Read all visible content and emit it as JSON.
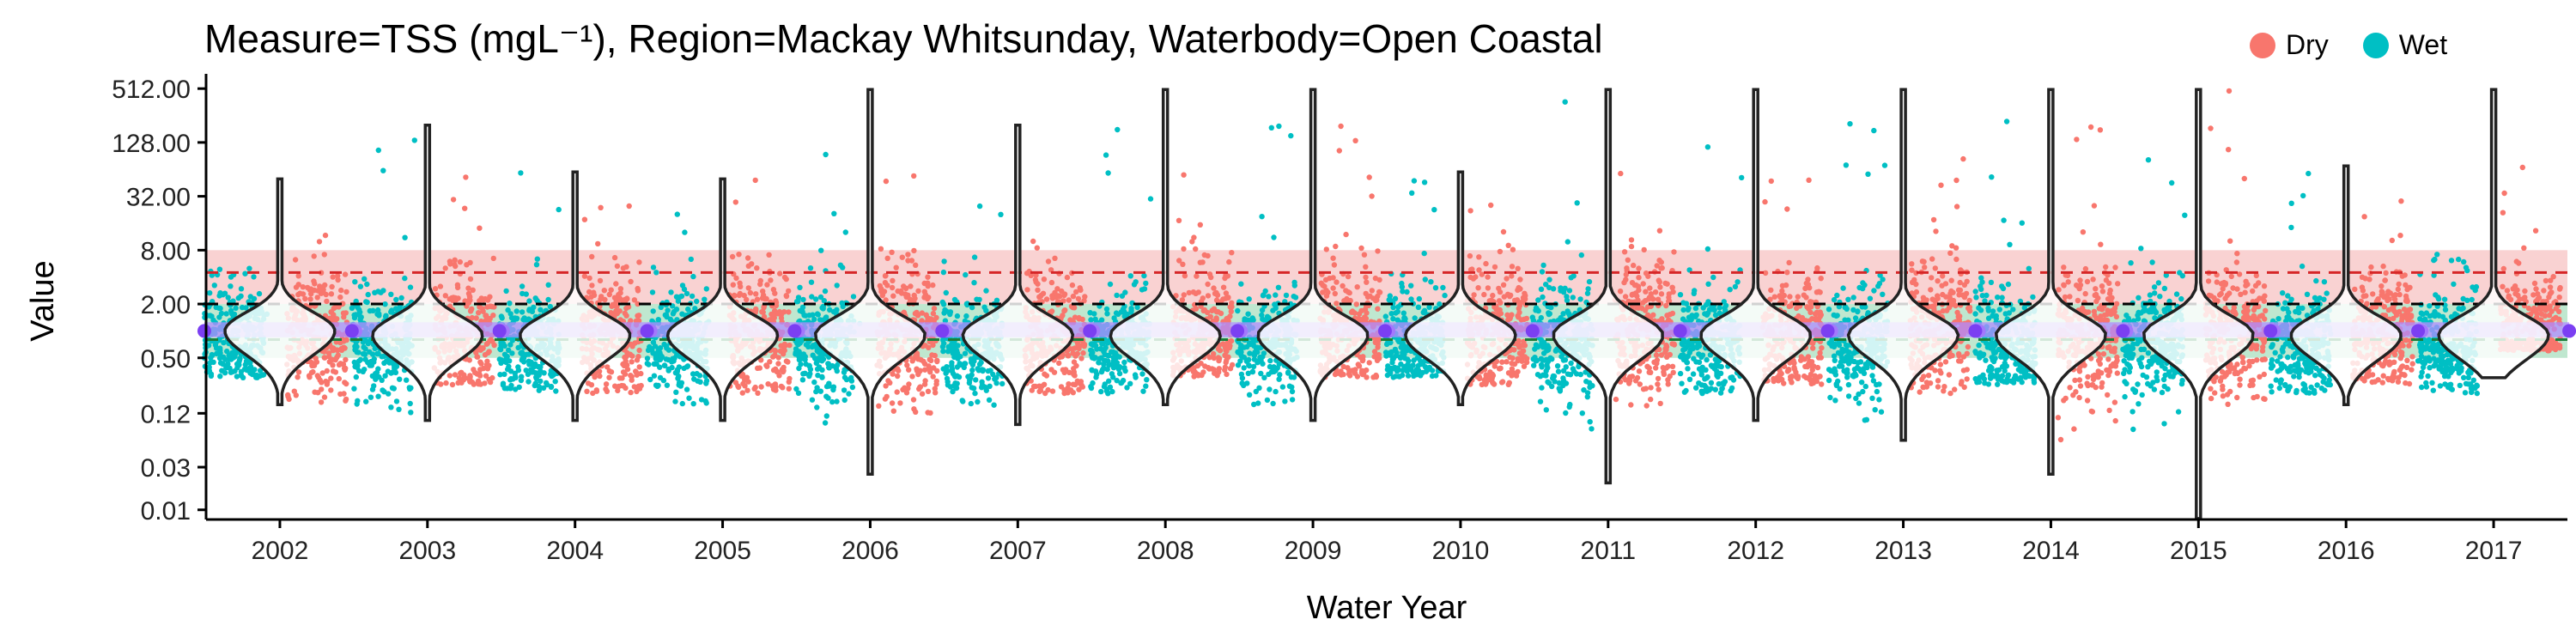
{
  "chart_data": {
    "type": "scatter",
    "title": "Measure=TSS (mgL⁻¹), Region=Mackay Whitsunday, Waterbody=Open Coastal",
    "xlabel": "Water Year",
    "ylabel": "Value",
    "y_scale": "log2",
    "ylim": [
      0.0078,
      600
    ],
    "y_ticks": [
      0.01,
      0.03,
      0.12,
      0.5,
      2,
      8,
      32,
      128,
      512
    ],
    "y_tick_labels": [
      "0.01",
      "0.03",
      "0.12",
      "0.50",
      "2.00",
      "8.00",
      "32.00",
      "128.00",
      "512.00"
    ],
    "categories": [
      "2002",
      "2003",
      "2004",
      "2005",
      "2006",
      "2007",
      "2008",
      "2009",
      "2010",
      "2011",
      "2012",
      "2013",
      "2014",
      "2015",
      "2016",
      "2017"
    ],
    "legend_position": "top-right",
    "legend": [
      {
        "label": "Dry",
        "color": "#F8766D"
      },
      {
        "label": "Wet",
        "color": "#00BFC4"
      }
    ],
    "reference_lines": [
      {
        "value": 4.5,
        "color": "#d62728",
        "style": "dashed"
      },
      {
        "value": 2.0,
        "color": "#000000",
        "style": "dashed"
      },
      {
        "value": 0.8,
        "color": "#1b7f3b",
        "style": "dashed"
      }
    ],
    "bands": [
      {
        "from": 2.0,
        "to": 8.0,
        "color": "#f4a6a6"
      },
      {
        "from": 0.5,
        "to": 2.0,
        "color": "#7fcfa0"
      }
    ],
    "series": [
      {
        "name": "Dry",
        "color": "#F8766D",
        "min": [
          0.15,
          0.25,
          0.2,
          0.2,
          0.12,
          0.2,
          0.3,
          0.3,
          0.25,
          0.12,
          0.25,
          0.2,
          0.03,
          0.15,
          0.25,
          0.6
        ],
        "median": [
          0.9,
          0.9,
          0.9,
          0.9,
          0.9,
          0.9,
          1.0,
          1.0,
          0.9,
          1.0,
          0.9,
          1.0,
          1.0,
          0.9,
          0.9,
          0.9
        ],
        "max": [
          40,
          60,
          50,
          60,
          500,
          20,
          300,
          200,
          60,
          100,
          90,
          100,
          500,
          500,
          50,
          500
        ]
      },
      {
        "name": "Wet",
        "color": "#00BFC4",
        "min": [
          0.3,
          0.12,
          0.2,
          0.15,
          0.02,
          0.12,
          0.2,
          0.15,
          0.3,
          0.02,
          0.2,
          0.1,
          0.25,
          0.008,
          0.2,
          0.2
        ],
        "median": [
          0.8,
          0.7,
          0.7,
          0.7,
          0.7,
          0.7,
          0.7,
          0.7,
          0.7,
          0.7,
          0.7,
          0.7,
          0.7,
          0.7,
          0.7,
          0.7
        ],
        "max": [
          6,
          200,
          70,
          40,
          100,
          30,
          500,
          500,
          60,
          500,
          500,
          500,
          500,
          500,
          60,
          10
        ]
      }
    ],
    "violins": {
      "median": [
        1.0,
        0.9,
        0.9,
        0.9,
        0.9,
        0.9,
        0.9,
        0.9,
        0.9,
        0.9,
        0.9,
        0.9,
        0.9,
        0.9,
        0.9,
        0.9
      ],
      "min": [
        0.15,
        0.1,
        0.1,
        0.1,
        0.025,
        0.09,
        0.15,
        0.1,
        0.15,
        0.02,
        0.1,
        0.06,
        0.025,
        0.008,
        0.15,
        0.3
      ],
      "max": [
        50,
        200,
        60,
        50,
        500,
        200,
        500,
        500,
        60,
        500,
        500,
        500,
        500,
        500,
        70,
        500
      ]
    }
  }
}
